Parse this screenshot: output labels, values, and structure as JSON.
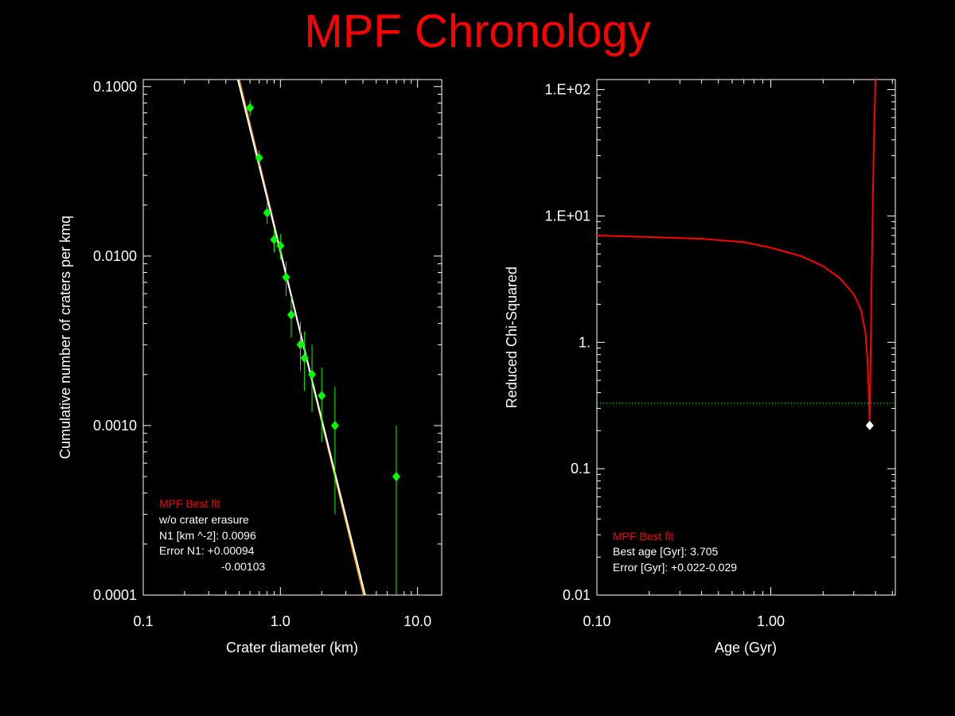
{
  "title": "MPF Chronology",
  "colors": {
    "background": "#000000",
    "title": "#ff0000",
    "axes": "#ffffff",
    "data_points": "#00ff00",
    "fit_white": "#ffffff",
    "fit_orange": "#ff9900",
    "chi_curve": "#ff0000",
    "threshold": "#00ff00",
    "legend_title": "#ff0000"
  },
  "chart_data": [
    {
      "type": "scatter",
      "title": "",
      "xlabel": "Crater diameter (km)",
      "ylabel": "Cumulative number of craters per kmq",
      "xscale": "log",
      "yscale": "log",
      "xlim": [
        0.1,
        15
      ],
      "ylim": [
        0.0001,
        0.11
      ],
      "xticks": [
        "0.1",
        "1.0",
        "10.0"
      ],
      "yticks": [
        "0.0001",
        "0.0010",
        "0.0100",
        "0.1000"
      ],
      "series": [
        {
          "type": "scatter",
          "x": [
            0.6,
            0.7,
            0.8,
            0.9,
            1.0,
            1.1,
            1.2,
            1.4,
            1.5,
            1.7,
            2.0,
            2.5,
            7.0
          ],
          "y": [
            0.075,
            0.038,
            0.018,
            0.0125,
            0.0115,
            0.0075,
            0.0045,
            0.003,
            0.0025,
            0.002,
            0.0015,
            0.001,
            0.0005
          ],
          "yerr_low": [
            0.067,
            0.034,
            0.0155,
            0.0105,
            0.0095,
            0.0058,
            0.0033,
            0.0021,
            0.0016,
            0.0012,
            0.0008,
            0.0003,
            0.0001
          ],
          "yerr_high": [
            0.083,
            0.042,
            0.0207,
            0.0145,
            0.0135,
            0.0093,
            0.0058,
            0.0041,
            0.0036,
            0.003,
            0.0022,
            0.0017,
            0.001
          ]
        },
        {
          "type": "line",
          "color_key": "fit_orange",
          "x": [
            0.5,
            4.05
          ],
          "y": [
            0.11,
            0.0001
          ]
        },
        {
          "type": "line",
          "color_key": "fit_white",
          "x": [
            0.49,
            4.15
          ],
          "y": [
            0.11,
            0.0001
          ]
        }
      ],
      "legend": {
        "title": "MPF Best fit",
        "lines": [
          "w/o crater erasure",
          "N1 [km ^-2]: 0.0096",
          "Error N1: +0.00094",
          "-0.00103"
        ]
      }
    },
    {
      "type": "line",
      "title": "",
      "xlabel": "Age (Gyr)",
      "ylabel": "Reduced Chi-Squared",
      "xscale": "log",
      "yscale": "log",
      "xlim": [
        0.1,
        5.2
      ],
      "ylim": [
        0.01,
        120
      ],
      "xticks": [
        "0.10",
        "1.00"
      ],
      "yticks": [
        "0.01",
        "0.1",
        "1.",
        "1.E+01",
        "1.E+02"
      ],
      "series": [
        {
          "type": "line",
          "x": [
            0.1,
            0.2,
            0.4,
            0.7,
            1.0,
            1.5,
            2.0,
            2.5,
            3.0,
            3.3,
            3.5,
            3.6,
            3.65,
            3.7,
            3.72,
            3.75,
            3.8,
            3.85,
            3.9,
            4.0
          ],
          "y": [
            7.0,
            6.8,
            6.6,
            6.2,
            5.6,
            4.8,
            4.0,
            3.2,
            2.4,
            1.8,
            1.2,
            0.7,
            0.45,
            0.24,
            0.3,
            0.8,
            3.0,
            10.0,
            30.0,
            130.0
          ]
        }
      ],
      "best_point": {
        "x": 3.705,
        "y": 0.22
      },
      "threshold": {
        "y": 0.33
      },
      "legend": {
        "title": "MPF Best fit",
        "lines": [
          "Best age [Gyr]: 3.705",
          "Error [Gyr]: +0.022-0.029"
        ]
      }
    }
  ]
}
